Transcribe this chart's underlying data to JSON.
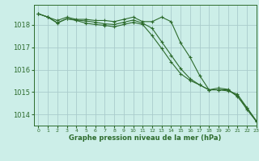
{
  "title": "Graphe pression niveau de la mer (hPa)",
  "background_color": "#cceee8",
  "grid_color": "#aacccc",
  "line_color": "#2d6b2d",
  "xlim": [
    -0.5,
    23
  ],
  "ylim": [
    1013.5,
    1018.9
  ],
  "yticks": [
    1014,
    1015,
    1016,
    1017,
    1018
  ],
  "xticks": [
    0,
    1,
    2,
    3,
    4,
    5,
    6,
    7,
    8,
    9,
    10,
    11,
    12,
    13,
    14,
    15,
    16,
    17,
    18,
    19,
    20,
    21,
    22,
    23
  ],
  "series": [
    [
      1018.5,
      1018.35,
      1018.2,
      1018.35,
      1018.25,
      1018.25,
      1018.2,
      1018.2,
      1018.15,
      1018.25,
      1018.35,
      1018.15,
      1018.15,
      1018.35,
      1018.15,
      1017.2,
      1016.55,
      1015.75,
      1015.1,
      1015.1,
      1015.1,
      1014.8,
      1014.3,
      1013.7
    ],
    [
      1018.5,
      1018.35,
      1018.1,
      1018.28,
      1018.22,
      1018.18,
      1018.12,
      1018.05,
      1018.02,
      1018.12,
      1018.22,
      1018.08,
      1017.85,
      1017.25,
      1016.65,
      1016.05,
      1015.6,
      1015.32,
      1015.1,
      1015.1,
      1015.05,
      1014.9,
      1014.3,
      1013.7
    ],
    [
      1018.5,
      1018.35,
      1018.08,
      1018.28,
      1018.2,
      1018.08,
      1018.02,
      1017.98,
      1017.92,
      1018.02,
      1018.12,
      1018.02,
      1017.52,
      1016.95,
      1016.35,
      1015.82,
      1015.52,
      1015.32,
      1015.1,
      1015.18,
      1015.12,
      1014.82,
      1014.22,
      1013.68
    ]
  ]
}
